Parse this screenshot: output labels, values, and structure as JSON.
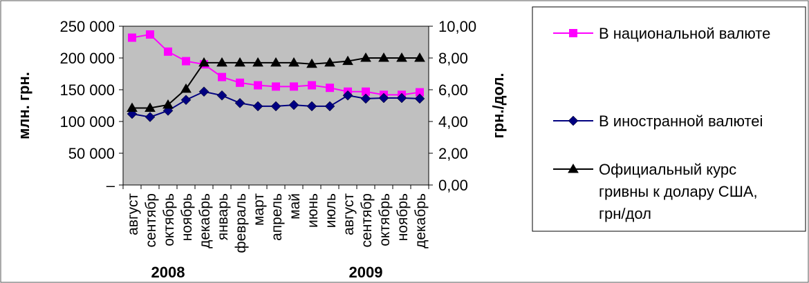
{
  "chart_data": {
    "type": "line",
    "categories": [
      "август",
      "сентябр",
      "октябрь",
      "ноябрь",
      "декабрь",
      "январь",
      "февраль",
      "март",
      "апрель",
      "май",
      "июнь",
      "июль",
      "август",
      "сентябр",
      "октябрь",
      "ноябрь",
      "декабрь"
    ],
    "year_labels": [
      {
        "text": "2008",
        "category_index": 2
      },
      {
        "text": "2009",
        "category_index": 13
      }
    ],
    "ylabel": "млн. грн.",
    "y2label": "грн./дол.",
    "ylim": [
      0,
      250000
    ],
    "y2lim": [
      0,
      10
    ],
    "y_ticks": [
      "–",
      "50 000",
      "100 000",
      "150 000",
      "200 000",
      "250 000"
    ],
    "y2_ticks": [
      "0,00",
      "2,00",
      "4,00",
      "6,00",
      "8,00",
      "10,00"
    ],
    "series": [
      {
        "name": "В национальной валюте",
        "axis": "left",
        "marker": "square",
        "color": "#ff00ff",
        "values": [
          232000,
          237000,
          210000,
          195000,
          190000,
          170000,
          161000,
          157000,
          155000,
          155000,
          157000,
          153000,
          147000,
          147000,
          142000,
          142000,
          146000
        ]
      },
      {
        "name": "В иностранной валютеi",
        "axis": "left",
        "marker": "diamond",
        "color": "#000080",
        "values": [
          112000,
          107000,
          117000,
          134000,
          147000,
          141000,
          129000,
          124000,
          124000,
          126000,
          124000,
          124000,
          141000,
          136000,
          137000,
          137000,
          136000
        ]
      },
      {
        "name": "Официальный курс гривны к долару США, грн/дол",
        "axis": "right",
        "marker": "triangle",
        "color": "#000000",
        "values": [
          4.85,
          4.85,
          5.05,
          6.05,
          7.7,
          7.7,
          7.7,
          7.7,
          7.7,
          7.7,
          7.62,
          7.7,
          7.8,
          8.0,
          8.0,
          8.0,
          8.0
        ]
      }
    ],
    "legend_position": "right",
    "plot_background": "#c0c0c0",
    "grid": false
  }
}
